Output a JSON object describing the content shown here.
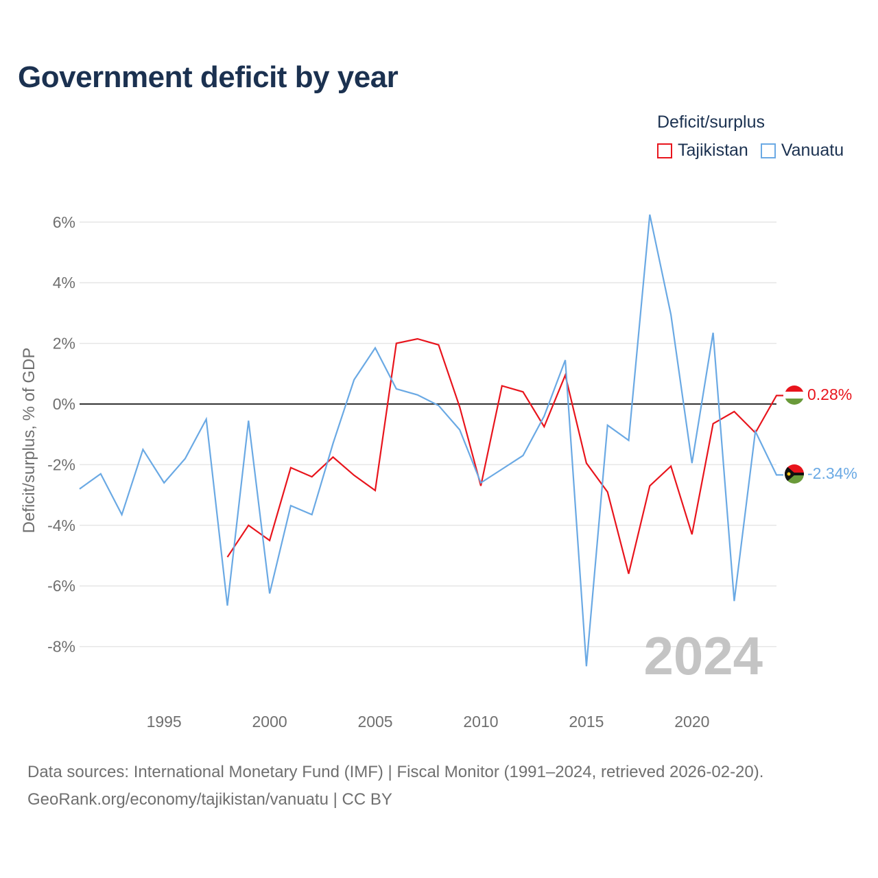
{
  "title": "Government deficit by year",
  "legend": {
    "title": "Deficit/surplus",
    "items": [
      {
        "name": "Tajikistan",
        "color": "#e8141c"
      },
      {
        "name": "Vanuatu",
        "color": "#6aa9e4"
      }
    ]
  },
  "year_watermark": "2024",
  "end_labels": {
    "tajikistan": "0.28%",
    "vanuatu": "-2.34%"
  },
  "source": {
    "line1": "Data sources: International Monetary Fund (IMF) | Fiscal Monitor (1991–2024, retrieved 2026-02-20).",
    "line2": "GeoRank.org/economy/tajikistan/vanuatu | CC BY"
  },
  "chart_data": {
    "type": "line",
    "title": "Government deficit by year",
    "xlabel": "",
    "ylabel": "Deficit/surplus, % of GDP",
    "xlim": [
      1991,
      2024
    ],
    "ylim": [
      -9.5,
      7
    ],
    "x_ticks": [
      1995,
      2000,
      2005,
      2010,
      2015,
      2020
    ],
    "x_tick_labels": [
      "1995",
      "2000",
      "2005",
      "2010",
      "2015",
      "2020"
    ],
    "y_ticks": [
      6,
      4,
      2,
      0,
      -2,
      -4,
      -6,
      -8
    ],
    "y_tick_labels": [
      "6%",
      "4%",
      "2%",
      "0%",
      "-2%",
      "-4%",
      "-6%",
      "-8%"
    ],
    "grid": true,
    "legend_position": "top-right",
    "series": [
      {
        "name": "Tajikistan",
        "color": "#e8141c",
        "x": [
          1998,
          1999,
          2000,
          2001,
          2002,
          2003,
          2004,
          2005,
          2006,
          2007,
          2008,
          2009,
          2010,
          2011,
          2012,
          2013,
          2014,
          2015,
          2016,
          2017,
          2018,
          2019,
          2020,
          2021,
          2022,
          2023,
          2024
        ],
        "values": [
          -5.05,
          -4.0,
          -4.5,
          -2.1,
          -2.4,
          -1.75,
          -2.35,
          -2.85,
          2.0,
          2.15,
          1.95,
          -0.1,
          -2.7,
          0.6,
          0.4,
          -0.75,
          0.95,
          -1.95,
          -2.9,
          -5.6,
          -2.7,
          -2.05,
          -4.3,
          -0.65,
          -0.25,
          -0.95,
          0.28
        ]
      },
      {
        "name": "Vanuatu",
        "color": "#6aa9e4",
        "x": [
          1991,
          1992,
          1993,
          1994,
          1995,
          1996,
          1997,
          1998,
          1999,
          2000,
          2001,
          2002,
          2003,
          2004,
          2005,
          2006,
          2007,
          2008,
          2009,
          2010,
          2011,
          2012,
          2013,
          2014,
          2015,
          2016,
          2017,
          2018,
          2019,
          2020,
          2021,
          2022,
          2023,
          2024
        ],
        "values": [
          -2.8,
          -2.3,
          -3.65,
          -1.5,
          -2.6,
          -1.8,
          -0.5,
          -6.65,
          -0.55,
          -6.25,
          -3.35,
          -3.65,
          -1.3,
          0.8,
          1.85,
          0.5,
          0.3,
          -0.05,
          -0.85,
          -2.6,
          -2.15,
          -1.7,
          -0.4,
          1.45,
          -8.65,
          -0.7,
          -1.2,
          6.25,
          2.95,
          -1.95,
          2.35,
          -6.5,
          -0.9,
          -2.34
        ]
      }
    ]
  }
}
